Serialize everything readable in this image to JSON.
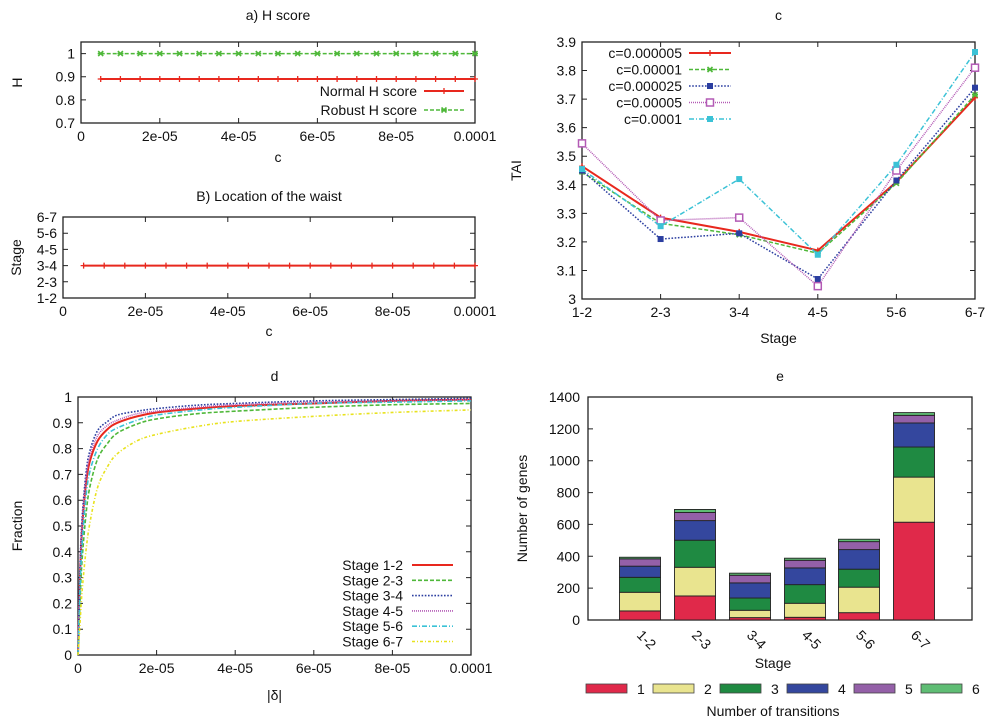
{
  "chart_data": [
    {
      "id": "a",
      "type": "line",
      "title": "a) H score",
      "xlabel": "c",
      "ylabel": "H",
      "xlim": [
        0,
        0.0001
      ],
      "ylim": [
        0.7,
        1.05
      ],
      "xticks": [
        0,
        2e-05,
        4e-05,
        6e-05,
        8e-05,
        0.0001
      ],
      "xtick_labels": [
        "0",
        "2e-05",
        "4e-05",
        "6e-05",
        "8e-05",
        "0.0001"
      ],
      "yticks": [
        0.7,
        0.8,
        0.9,
        1.0
      ],
      "ytick_labels": [
        "0.7",
        "0.8",
        "0.9",
        "1"
      ],
      "legend_position": "bottom-right",
      "x": [
        5e-06,
        1e-05,
        1.5e-05,
        2e-05,
        2.5e-05,
        3e-05,
        3.5e-05,
        4e-05,
        4.5e-05,
        5e-05,
        5.5e-05,
        6e-05,
        6.5e-05,
        7e-05,
        7.5e-05,
        8e-05,
        8.5e-05,
        9e-05,
        9.5e-05,
        0.0001
      ],
      "series": [
        {
          "name": "Normal H score",
          "color": "#e8281e",
          "style": "solid",
          "marker": "plus",
          "values": [
            0.89,
            0.89,
            0.89,
            0.89,
            0.89,
            0.89,
            0.89,
            0.89,
            0.89,
            0.89,
            0.89,
            0.89,
            0.89,
            0.89,
            0.89,
            0.89,
            0.89,
            0.89,
            0.89,
            0.89
          ]
        },
        {
          "name": "Robust H score",
          "color": "#4fb83a",
          "style": "dashed",
          "marker": "x",
          "values": [
            1,
            1,
            1,
            1,
            1,
            1,
            1,
            1,
            1,
            1,
            1,
            1,
            1,
            1,
            1,
            1,
            1,
            1,
            1,
            1
          ]
        }
      ]
    },
    {
      "id": "b",
      "type": "line",
      "title": "B) Location of the waist",
      "xlabel": "c",
      "ylabel": "Stage",
      "xlim": [
        0,
        0.0001
      ],
      "xticks": [
        0,
        2e-05,
        4e-05,
        6e-05,
        8e-05,
        0.0001
      ],
      "xtick_labels": [
        "0",
        "2e-05",
        "4e-05",
        "6e-05",
        "8e-05",
        "0.0001"
      ],
      "ycategories": [
        "1-2",
        "2-3",
        "3-4",
        "4-5",
        "5-6",
        "6-7"
      ],
      "x": [
        5e-06,
        1e-05,
        1.5e-05,
        2e-05,
        2.5e-05,
        3e-05,
        3.5e-05,
        4e-05,
        4.5e-05,
        5e-05,
        5.5e-05,
        6e-05,
        6.5e-05,
        7e-05,
        7.5e-05,
        8e-05,
        8.5e-05,
        9e-05,
        9.5e-05,
        0.0001
      ],
      "series": [
        {
          "name": "waist",
          "color": "#e8281e",
          "style": "solid",
          "marker": "plus",
          "values": [
            "3-4",
            "3-4",
            "3-4",
            "3-4",
            "3-4",
            "3-4",
            "3-4",
            "3-4",
            "3-4",
            "3-4",
            "3-4",
            "3-4",
            "3-4",
            "3-4",
            "3-4",
            "3-4",
            "3-4",
            "3-4",
            "3-4",
            "3-4"
          ]
        }
      ]
    },
    {
      "id": "c",
      "type": "line",
      "title": "c",
      "xlabel": "Stage",
      "ylabel": "TAI",
      "categories": [
        "1-2",
        "2-3",
        "3-4",
        "4-5",
        "5-6",
        "6-7"
      ],
      "ylim": [
        3,
        3.9
      ],
      "yticks": [
        3,
        3.1,
        3.2,
        3.3,
        3.4,
        3.5,
        3.6,
        3.7,
        3.8,
        3.9
      ],
      "ytick_labels": [
        "3",
        "3.1",
        "3.2",
        "3.3",
        "3.4",
        "3.5",
        "3.6",
        "3.7",
        "3.8",
        "3.9"
      ],
      "legend_position": "top-left",
      "series": [
        {
          "name": "c=0.000005",
          "color": "#e8281e",
          "style": "solid",
          "marker": "plus",
          "values": [
            3.465,
            3.285,
            3.235,
            3.17,
            3.41,
            3.705
          ]
        },
        {
          "name": "c=0.00001",
          "color": "#4fb83a",
          "style": "dashed",
          "marker": "x",
          "values": [
            3.445,
            3.265,
            3.225,
            3.16,
            3.405,
            3.715
          ]
        },
        {
          "name": "c=0.000025",
          "color": "#2b3ea0",
          "style": "dotted",
          "marker": "filled-square",
          "values": [
            3.45,
            3.21,
            3.23,
            3.07,
            3.415,
            3.74
          ]
        },
        {
          "name": "c=0.00005",
          "color": "#b35ab5",
          "style": "dotted-fine",
          "marker": "open-square",
          "values": [
            3.545,
            3.275,
            3.285,
            3.045,
            3.45,
            3.81
          ]
        },
        {
          "name": "c=0.0001",
          "color": "#3bc2d6",
          "style": "dash-dot",
          "marker": "filled-square",
          "values": [
            3.455,
            3.255,
            3.42,
            3.155,
            3.47,
            3.865
          ]
        }
      ]
    },
    {
      "id": "d",
      "type": "line",
      "title": "d",
      "xlabel": "|δ|",
      "ylabel": "Fraction",
      "xlim": [
        0,
        0.0001
      ],
      "ylim": [
        0,
        1
      ],
      "xticks": [
        0,
        2e-05,
        4e-05,
        6e-05,
        8e-05,
        0.0001
      ],
      "xtick_labels": [
        "0",
        "2e-05",
        "4e-05",
        "6e-05",
        "8e-05",
        "0.0001"
      ],
      "yticks": [
        0,
        0.1,
        0.2,
        0.3,
        0.4,
        0.5,
        0.6,
        0.7,
        0.8,
        0.9,
        1
      ],
      "ytick_labels": [
        "0",
        "0.1",
        "0.2",
        "0.3",
        "0.4",
        "0.5",
        "0.6",
        "0.7",
        "0.8",
        "0.9",
        "1"
      ],
      "legend_position": "bottom-right",
      "x": [
        0,
        5e-07,
        1e-06,
        2e-06,
        3e-06,
        5e-06,
        7.5e-06,
        1e-05,
        1.5e-05,
        2e-05,
        3e-05,
        4e-05,
        6e-05,
        8e-05,
        0.0001
      ],
      "series": [
        {
          "name": "Stage 1-2",
          "color": "#e8281e",
          "style": "solid",
          "values": [
            0,
            0.3,
            0.48,
            0.66,
            0.75,
            0.83,
            0.875,
            0.9,
            0.925,
            0.94,
            0.955,
            0.965,
            0.975,
            0.985,
            0.99
          ]
        },
        {
          "name": "Stage 2-3",
          "color": "#4fb83a",
          "style": "dashed",
          "values": [
            0,
            0.2,
            0.36,
            0.54,
            0.65,
            0.76,
            0.82,
            0.86,
            0.895,
            0.915,
            0.935,
            0.945,
            0.96,
            0.97,
            0.975
          ]
        },
        {
          "name": "Stage 3-4",
          "color": "#2b3ea0",
          "style": "dotted",
          "values": [
            0,
            0.33,
            0.52,
            0.7,
            0.79,
            0.87,
            0.905,
            0.93,
            0.945,
            0.955,
            0.968,
            0.975,
            0.985,
            0.99,
            0.995
          ]
        },
        {
          "name": "Stage 4-5",
          "color": "#b35ab5",
          "style": "dotted-fine",
          "values": [
            0,
            0.31,
            0.5,
            0.68,
            0.77,
            0.85,
            0.89,
            0.91,
            0.935,
            0.945,
            0.96,
            0.97,
            0.98,
            0.985,
            0.99
          ]
        },
        {
          "name": "Stage 5-6",
          "color": "#3bc2d6",
          "style": "dash-dot",
          "values": [
            0,
            0.25,
            0.42,
            0.61,
            0.71,
            0.8,
            0.855,
            0.88,
            0.91,
            0.93,
            0.948,
            0.96,
            0.975,
            0.98,
            0.985
          ]
        },
        {
          "name": "Stage 6-7",
          "color": "#e8e21e",
          "style": "dash-dot-fine",
          "values": [
            0,
            0.12,
            0.24,
            0.4,
            0.51,
            0.65,
            0.73,
            0.78,
            0.83,
            0.855,
            0.885,
            0.905,
            0.925,
            0.94,
            0.95
          ]
        }
      ]
    },
    {
      "id": "e",
      "type": "bar",
      "stacked": true,
      "title": "e",
      "xlabel": "Stage",
      "ylabel": "Number of genes",
      "legend_title": "Number of transitions",
      "legend_position": "bottom",
      "categories": [
        "1-2",
        "2-3",
        "3-4",
        "4-5",
        "5-6",
        "6-7"
      ],
      "ylim": [
        0,
        1400
      ],
      "yticks": [
        0,
        200,
        400,
        600,
        800,
        1000,
        1200,
        1400
      ],
      "ytick_labels": [
        "0",
        "200",
        "400",
        "600",
        "800",
        "1000",
        "1200",
        "1400"
      ],
      "series": [
        {
          "name": "1",
          "color": "#e0294a",
          "values": [
            57,
            151,
            15,
            17,
            46,
            614
          ]
        },
        {
          "name": "2",
          "color": "#e9e48f",
          "values": [
            117,
            180,
            46,
            88,
            160,
            283
          ]
        },
        {
          "name": "3",
          "color": "#1f8a42",
          "values": [
            94,
            170,
            77,
            117,
            113,
            189
          ]
        },
        {
          "name": "4",
          "color": "#34479e",
          "values": [
            70,
            123,
            95,
            105,
            123,
            151
          ]
        },
        {
          "name": "5",
          "color": "#9460a8",
          "values": [
            46,
            51,
            48,
            48,
            50,
            48
          ]
        },
        {
          "name": "6",
          "color": "#5fbd74",
          "values": [
            10,
            19,
            13,
            13,
            15,
            17
          ]
        }
      ]
    }
  ]
}
